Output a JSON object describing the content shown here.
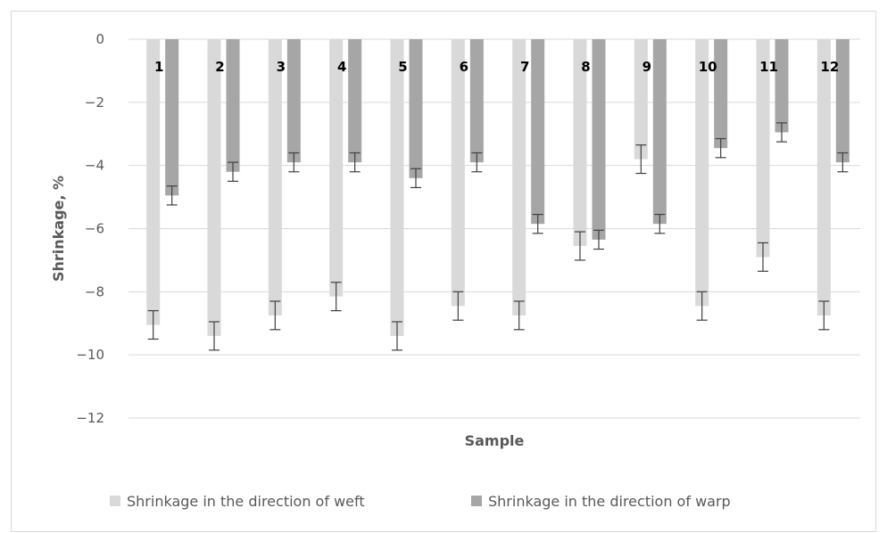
{
  "chart_data": {
    "type": "bar",
    "title": "",
    "xlabel": "Sample",
    "ylabel": "Shrinkage, %",
    "ylim": [
      -12,
      0
    ],
    "yticks": [
      0,
      -2,
      -4,
      -6,
      -8,
      -10,
      -12
    ],
    "ytick_labels": [
      "0",
      "−2",
      "−4",
      "−6",
      "−8",
      "−10",
      "−12"
    ],
    "categories": [
      "1",
      "2",
      "3",
      "4",
      "5",
      "6",
      "7",
      "8",
      "9",
      "10",
      "11",
      "12"
    ],
    "series": [
      {
        "name": "Shrinkage in the direction of weft",
        "color": "#d9d9d9",
        "values": [
          -9.05,
          -9.4,
          -8.75,
          -8.15,
          -9.4,
          -8.45,
          -8.75,
          -6.55,
          -3.8,
          -8.45,
          -6.9,
          -8.75
        ],
        "errors": [
          0.45,
          0.45,
          0.45,
          0.45,
          0.45,
          0.45,
          0.45,
          0.45,
          0.45,
          0.45,
          0.45,
          0.45
        ]
      },
      {
        "name": "Shrinkage in the direction of warp",
        "color": "#a6a6a6",
        "values": [
          -4.95,
          -4.2,
          -3.9,
          -3.9,
          -4.4,
          -3.9,
          -5.85,
          -6.35,
          -5.85,
          -3.45,
          -2.95,
          -3.9
        ],
        "errors": [
          0.3,
          0.3,
          0.3,
          0.3,
          0.3,
          0.3,
          0.3,
          0.3,
          0.3,
          0.3,
          0.3,
          0.3
        ]
      }
    ],
    "grid": true,
    "legend_position": "bottom",
    "error_bars": true
  }
}
